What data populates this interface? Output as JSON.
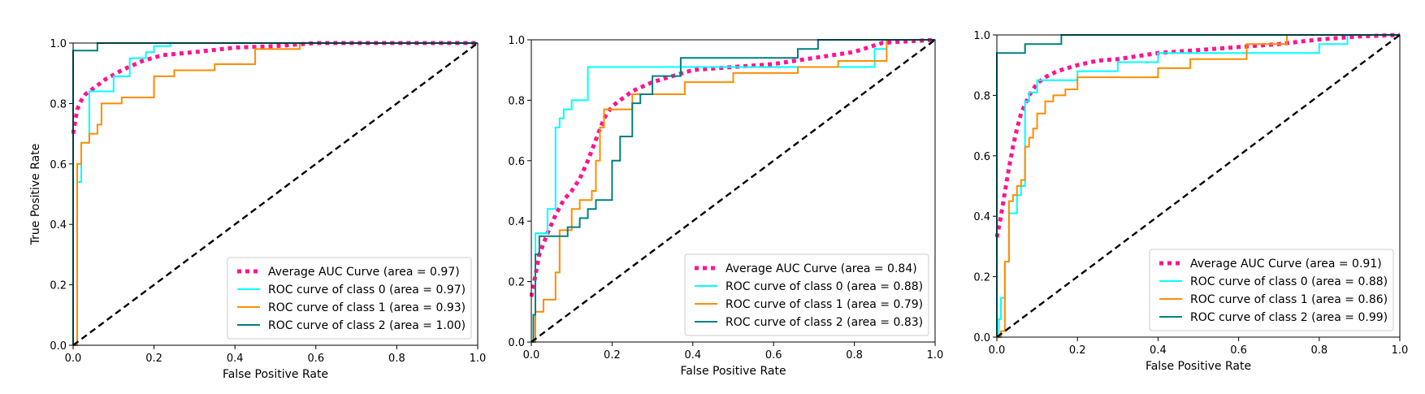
{
  "chart_data": [
    {
      "type": "line",
      "xlabel": "False Positive Rate",
      "ylabel": "True Positive Rate",
      "xlim": [
        0,
        1
      ],
      "ylim": [
        0,
        1
      ],
      "xticks": [
        "0.0",
        "0.2",
        "0.4",
        "0.6",
        "0.8",
        "1.0"
      ],
      "yticks": [
        "0.0",
        "0.2",
        "0.4",
        "0.6",
        "0.8",
        "1.0"
      ],
      "grid": false,
      "legend_position": "bottom-right",
      "series": [
        {
          "name": "Average AUC Curve (area = 0.97)",
          "color": "#ff1493",
          "style": "dotted",
          "x": [
            0,
            0.005,
            0.01,
            0.02,
            0.03,
            0.05,
            0.08,
            0.12,
            0.17,
            0.22,
            0.3,
            0.4,
            0.5,
            0.6,
            0.8,
            1.0
          ],
          "y": [
            0.7,
            0.74,
            0.78,
            0.81,
            0.83,
            0.85,
            0.88,
            0.91,
            0.94,
            0.96,
            0.97,
            0.985,
            0.99,
            1.0,
            1.0,
            1.0
          ]
        },
        {
          "name": "ROC curve of class 0 (area = 0.97)",
          "color": "#00ffff",
          "style": "solid",
          "x": [
            0,
            0.01,
            0.01,
            0.02,
            0.02,
            0.04,
            0.04,
            0.1,
            0.1,
            0.14,
            0.14,
            0.18,
            0.18,
            0.2,
            0.2,
            0.24,
            0.24,
            1.0
          ],
          "y": [
            0,
            0,
            0.54,
            0.54,
            0.67,
            0.67,
            0.84,
            0.84,
            0.89,
            0.89,
            0.95,
            0.95,
            0.97,
            0.97,
            0.99,
            0.99,
            1.0,
            1.0
          ]
        },
        {
          "name": "ROC curve of class 1 (area = 0.93)",
          "color": "#ff8c00",
          "style": "solid",
          "x": [
            0,
            0.01,
            0.01,
            0.02,
            0.02,
            0.04,
            0.04,
            0.06,
            0.06,
            0.07,
            0.07,
            0.12,
            0.12,
            0.2,
            0.2,
            0.25,
            0.25,
            0.35,
            0.35,
            0.45,
            0.45,
            0.56,
            0.56,
            1.0
          ],
          "y": [
            0,
            0,
            0.6,
            0.6,
            0.67,
            0.67,
            0.7,
            0.7,
            0.73,
            0.73,
            0.8,
            0.8,
            0.82,
            0.82,
            0.89,
            0.89,
            0.91,
            0.91,
            0.93,
            0.93,
            0.98,
            0.98,
            1.0,
            1.0
          ]
        },
        {
          "name": "ROC curve of class 2 (area = 1.00)",
          "color": "#008080",
          "style": "solid",
          "x": [
            0,
            0,
            0.06,
            0.06,
            1.0
          ],
          "y": [
            0,
            0.975,
            0.975,
            1.0,
            1.0
          ]
        }
      ],
      "reference_line": {
        "x": [
          0,
          1
        ],
        "y": [
          0,
          1
        ],
        "color": "#000000",
        "style": "dashed"
      }
    },
    {
      "type": "line",
      "xlabel": "False Positive Rate",
      "ylabel": "",
      "xlim": [
        0,
        1
      ],
      "ylim": [
        0,
        1
      ],
      "xticks": [
        "0.0",
        "0.2",
        "0.4",
        "0.6",
        "0.8",
        "1.0"
      ],
      "yticks": [
        "0.0",
        "0.2",
        "0.4",
        "0.6",
        "0.8",
        "1.0"
      ],
      "grid": false,
      "legend_position": "bottom-right",
      "series": [
        {
          "name": "Average AUC Curve (area = 0.84)",
          "color": "#ff1493",
          "style": "dotted",
          "x": [
            0,
            0.01,
            0.02,
            0.04,
            0.06,
            0.08,
            0.1,
            0.12,
            0.14,
            0.16,
            0.18,
            0.2,
            0.25,
            0.3,
            0.35,
            0.4,
            0.5,
            0.6,
            0.7,
            0.8,
            0.87,
            1.0
          ],
          "y": [
            0.15,
            0.22,
            0.29,
            0.36,
            0.42,
            0.47,
            0.5,
            0.54,
            0.6,
            0.67,
            0.74,
            0.78,
            0.83,
            0.86,
            0.88,
            0.9,
            0.91,
            0.92,
            0.94,
            0.96,
            0.99,
            1.0
          ]
        },
        {
          "name": "ROC curve of class 0 (area = 0.88)",
          "color": "#00ffff",
          "style": "solid",
          "x": [
            0,
            0.01,
            0.01,
            0.04,
            0.04,
            0.06,
            0.06,
            0.07,
            0.07,
            0.08,
            0.08,
            0.1,
            0.1,
            0.14,
            0.14,
            0.85,
            0.85,
            0.88,
            0.88,
            1.0
          ],
          "y": [
            0,
            0,
            0.36,
            0.36,
            0.44,
            0.44,
            0.71,
            0.71,
            0.74,
            0.74,
            0.77,
            0.77,
            0.8,
            0.8,
            0.91,
            0.91,
            0.97,
            0.97,
            1.0,
            1.0
          ]
        },
        {
          "name": "ROC curve of class 1 (area = 0.79)",
          "color": "#ff8c00",
          "style": "solid",
          "x": [
            0,
            0.01,
            0.01,
            0.03,
            0.03,
            0.06,
            0.06,
            0.07,
            0.07,
            0.1,
            0.1,
            0.12,
            0.12,
            0.15,
            0.15,
            0.16,
            0.16,
            0.17,
            0.17,
            0.18,
            0.18,
            0.25,
            0.25,
            0.38,
            0.38,
            0.5,
            0.5,
            0.66,
            0.66,
            0.76,
            0.76,
            0.88,
            0.88,
            1.0
          ],
          "y": [
            0,
            0,
            0.1,
            0.1,
            0.14,
            0.14,
            0.23,
            0.23,
            0.37,
            0.37,
            0.44,
            0.44,
            0.47,
            0.47,
            0.5,
            0.5,
            0.6,
            0.6,
            0.71,
            0.71,
            0.77,
            0.77,
            0.82,
            0.82,
            0.86,
            0.86,
            0.89,
            0.89,
            0.91,
            0.91,
            0.93,
            0.93,
            1.0,
            1.0
          ]
        },
        {
          "name": "ROC curve of class 2 (area = 0.83)",
          "color": "#008080",
          "style": "solid",
          "x": [
            0,
            0.005,
            0.005,
            0.01,
            0.01,
            0.02,
            0.02,
            0.09,
            0.09,
            0.12,
            0.12,
            0.14,
            0.14,
            0.16,
            0.16,
            0.2,
            0.2,
            0.22,
            0.22,
            0.25,
            0.25,
            0.27,
            0.27,
            0.3,
            0.3,
            0.37,
            0.37,
            0.66,
            0.66,
            0.71,
            0.71,
            1.0
          ],
          "y": [
            0,
            0,
            0.09,
            0.09,
            0.29,
            0.29,
            0.35,
            0.35,
            0.38,
            0.38,
            0.41,
            0.41,
            0.44,
            0.44,
            0.47,
            0.47,
            0.6,
            0.6,
            0.68,
            0.68,
            0.79,
            0.79,
            0.82,
            0.82,
            0.88,
            0.88,
            0.94,
            0.94,
            0.97,
            0.97,
            1.0,
            1.0
          ]
        }
      ],
      "reference_line": {
        "x": [
          0,
          1
        ],
        "y": [
          0,
          1
        ],
        "color": "#000000",
        "style": "dashed"
      }
    },
    {
      "type": "line",
      "xlabel": "False Positive Rate",
      "ylabel": "",
      "xlim": [
        0,
        1
      ],
      "ylim": [
        0,
        1
      ],
      "xticks": [
        "0.0",
        "0.2",
        "0.4",
        "0.6",
        "0.8",
        "1.0"
      ],
      "yticks": [
        "0.0",
        "0.2",
        "0.4",
        "0.6",
        "0.8",
        "1.0"
      ],
      "grid": false,
      "legend_position": "bottom-right",
      "series": [
        {
          "name": "Average AUC Curve (area = 0.91)",
          "color": "#ff1493",
          "style": "dotted",
          "x": [
            0,
            0.01,
            0.02,
            0.03,
            0.04,
            0.05,
            0.06,
            0.08,
            0.1,
            0.12,
            0.15,
            0.2,
            0.25,
            0.3,
            0.4,
            0.5,
            0.6,
            0.7,
            0.8,
            0.9,
            1.0
          ],
          "y": [
            0.33,
            0.4,
            0.48,
            0.56,
            0.63,
            0.69,
            0.74,
            0.8,
            0.84,
            0.86,
            0.88,
            0.9,
            0.915,
            0.92,
            0.94,
            0.95,
            0.96,
            0.97,
            0.985,
            0.995,
            1.0
          ]
        },
        {
          "name": "ROC curve of class 0 (area = 0.88)",
          "color": "#00ffff",
          "style": "solid",
          "x": [
            0,
            0.005,
            0.005,
            0.01,
            0.01,
            0.02,
            0.02,
            0.03,
            0.03,
            0.05,
            0.05,
            0.06,
            0.06,
            0.07,
            0.07,
            0.08,
            0.08,
            0.1,
            0.1,
            0.2,
            0.2,
            0.3,
            0.3,
            0.4,
            0.4,
            0.8,
            0.8,
            0.87,
            0.87,
            1.0
          ],
          "y": [
            0,
            0,
            0.06,
            0.06,
            0.13,
            0.13,
            0.25,
            0.25,
            0.41,
            0.41,
            0.47,
            0.47,
            0.5,
            0.5,
            0.78,
            0.78,
            0.81,
            0.81,
            0.85,
            0.85,
            0.88,
            0.88,
            0.91,
            0.91,
            0.94,
            0.94,
            0.97,
            0.97,
            1.0,
            1.0
          ]
        },
        {
          "name": "ROC curve of class 1 (area = 0.86)",
          "color": "#ff8c00",
          "style": "solid",
          "x": [
            0,
            0.01,
            0.01,
            0.02,
            0.02,
            0.03,
            0.03,
            0.04,
            0.04,
            0.05,
            0.05,
            0.06,
            0.06,
            0.07,
            0.07,
            0.08,
            0.08,
            0.09,
            0.09,
            0.1,
            0.1,
            0.12,
            0.12,
            0.14,
            0.14,
            0.17,
            0.17,
            0.2,
            0.2,
            0.4,
            0.4,
            0.48,
            0.48,
            0.62,
            0.62,
            0.72,
            0.72,
            1.0
          ],
          "y": [
            0,
            0,
            0.02,
            0.02,
            0.25,
            0.25,
            0.45,
            0.45,
            0.47,
            0.47,
            0.5,
            0.5,
            0.52,
            0.52,
            0.63,
            0.63,
            0.66,
            0.66,
            0.69,
            0.69,
            0.74,
            0.74,
            0.78,
            0.78,
            0.8,
            0.8,
            0.82,
            0.82,
            0.86,
            0.86,
            0.89,
            0.89,
            0.92,
            0.92,
            0.97,
            0.97,
            1.0,
            1.0
          ]
        },
        {
          "name": "ROC curve of class 2 (area = 0.99)",
          "color": "#008080",
          "style": "solid",
          "x": [
            0,
            0,
            0.07,
            0.07,
            0.16,
            0.16,
            1.0
          ],
          "y": [
            0,
            0.94,
            0.94,
            0.97,
            0.97,
            1.0,
            1.0
          ]
        }
      ],
      "reference_line": {
        "x": [
          0,
          1
        ],
        "y": [
          0,
          1
        ],
        "color": "#000000",
        "style": "dashed"
      }
    }
  ]
}
